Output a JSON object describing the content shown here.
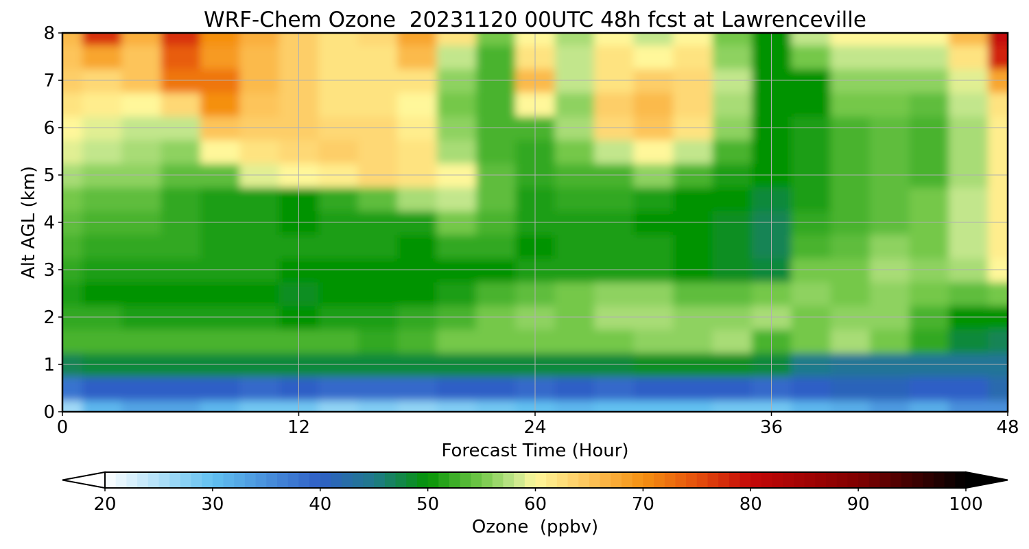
{
  "chart_data": {
    "type": "heatmap",
    "title": "WRF-Chem Ozone  20231120 00UTC 48h fcst at Lawrenceville",
    "xlabel": "Forecast Time (Hour)",
    "ylabel": "Alt AGL (km)",
    "xlim": [
      0,
      48
    ],
    "ylim": [
      0,
      8
    ],
    "xticks": [
      0,
      12,
      24,
      36,
      48
    ],
    "yticks": [
      0,
      1,
      2,
      3,
      4,
      5,
      6,
      7,
      8
    ],
    "grid": true,
    "colorbar": {
      "label": "Ozone  (ppbv)",
      "range": [
        20,
        100
      ],
      "ticks": [
        20,
        30,
        40,
        50,
        60,
        70,
        80,
        90,
        100
      ],
      "extend": "both",
      "levels_step": 1,
      "colors": [
        {
          "value": 20,
          "color": "#ffffff"
        },
        {
          "value": 30,
          "color": "#62c1f1"
        },
        {
          "value": 40,
          "color": "#2f5fc6"
        },
        {
          "value": 45,
          "color": "#1f7a8a"
        },
        {
          "value": 50,
          "color": "#059305"
        },
        {
          "value": 55,
          "color": "#74c84a"
        },
        {
          "value": 58,
          "color": "#c2e68c"
        },
        {
          "value": 60,
          "color": "#fff79a"
        },
        {
          "value": 65,
          "color": "#fdc45a"
        },
        {
          "value": 70,
          "color": "#f59011"
        },
        {
          "value": 75,
          "color": "#e5500d"
        },
        {
          "value": 80,
          "color": "#c40707"
        },
        {
          "value": 90,
          "color": "#800000"
        },
        {
          "value": 100,
          "color": "#000000"
        }
      ]
    },
    "altitudes_km": [
      0,
      0.5,
      1,
      1.5,
      2,
      2.5,
      3,
      3.5,
      4,
      4.5,
      5,
      5.5,
      6,
      6.5,
      7,
      7.5,
      8
    ],
    "hours": [
      0,
      2,
      4,
      6,
      8,
      10,
      12,
      14,
      16,
      18,
      20,
      22,
      24,
      26,
      28,
      30,
      32,
      34,
      36,
      38,
      40,
      42,
      44,
      46,
      48
    ],
    "ozone_ppbv": [
      [
        26,
        31,
        33,
        33,
        31,
        29,
        29,
        27,
        28,
        27,
        28,
        29,
        30,
        31,
        30,
        30,
        30,
        29,
        29,
        31,
        32,
        34,
        32,
        35,
        35
      ],
      [
        38,
        40,
        40,
        40,
        40,
        39,
        40,
        39,
        39,
        39,
        40,
        40,
        39,
        40,
        39,
        40,
        40,
        40,
        39,
        40,
        41,
        41,
        40,
        40,
        42
      ],
      [
        47,
        48,
        48,
        48,
        48,
        48,
        48,
        48,
        48,
        48,
        48,
        48,
        48,
        48,
        48,
        49,
        49,
        49,
        48,
        45,
        44,
        44,
        44,
        44,
        44
      ],
      [
        53,
        53,
        53,
        53,
        53,
        53,
        53,
        53,
        52,
        53,
        55,
        55,
        55,
        55,
        55,
        56,
        56,
        57,
        53,
        55,
        57,
        55,
        52,
        48,
        47
      ],
      [
        52,
        52,
        51,
        51,
        51,
        51,
        50,
        51,
        51,
        52,
        53,
        55,
        56,
        55,
        57,
        57,
        56,
        56,
        57,
        55,
        56,
        56,
        53,
        50,
        50
      ],
      [
        51,
        50,
        50,
        50,
        50,
        50,
        49,
        50,
        50,
        50,
        51,
        53,
        54,
        55,
        56,
        56,
        54,
        54,
        55,
        56,
        55,
        56,
        55,
        54,
        55
      ],
      [
        52,
        51,
        51,
        51,
        51,
        51,
        50,
        50,
        50,
        50,
        50,
        50,
        51,
        51,
        51,
        51,
        50,
        49,
        48,
        55,
        55,
        57,
        56,
        57,
        60
      ],
      [
        53,
        52,
        52,
        52,
        51,
        51,
        51,
        51,
        51,
        50,
        52,
        52,
        50,
        51,
        51,
        51,
        50,
        49,
        47,
        53,
        54,
        56,
        55,
        58,
        61
      ],
      [
        54,
        53,
        53,
        52,
        51,
        51,
        50,
        51,
        51,
        51,
        55,
        53,
        51,
        51,
        51,
        50,
        50,
        49,
        47,
        52,
        53,
        54,
        55,
        58,
        61
      ],
      [
        55,
        54,
        54,
        52,
        51,
        51,
        50,
        52,
        54,
        57,
        58,
        54,
        51,
        52,
        52,
        51,
        50,
        50,
        48,
        51,
        53,
        54,
        55,
        58,
        61
      ],
      [
        57,
        56,
        56,
        54,
        54,
        59,
        60,
        61,
        63,
        62,
        60,
        54,
        52,
        53,
        53,
        56,
        53,
        51,
        50,
        51,
        53,
        54,
        53,
        57,
        61
      ],
      [
        59,
        58,
        57,
        56,
        60,
        62,
        63,
        64,
        63,
        62,
        57,
        53,
        52,
        55,
        58,
        60,
        58,
        53,
        50,
        51,
        53,
        54,
        53,
        57,
        61
      ],
      [
        60,
        59,
        58,
        58,
        65,
        64,
        64,
        63,
        63,
        61,
        56,
        53,
        53,
        57,
        63,
        65,
        62,
        56,
        50,
        51,
        53,
        54,
        53,
        57,
        61
      ],
      [
        62,
        61,
        60,
        63,
        70,
        65,
        64,
        62,
        62,
        60,
        55,
        53,
        60,
        56,
        64,
        66,
        63,
        57,
        50,
        50,
        55,
        55,
        54,
        58,
        62
      ],
      [
        64,
        63,
        65,
        72,
        72,
        66,
        64,
        62,
        62,
        62,
        56,
        53,
        66,
        58,
        62,
        64,
        63,
        58,
        50,
        50,
        56,
        56,
        56,
        59,
        68
      ],
      [
        65,
        68,
        65,
        74,
        69,
        66,
        64,
        62,
        62,
        66,
        58,
        53,
        62,
        58,
        62,
        60,
        62,
        56,
        50,
        55,
        58,
        58,
        58,
        62,
        78
      ],
      [
        66,
        77,
        67,
        77,
        70,
        67,
        64,
        62,
        63,
        68,
        62,
        55,
        60,
        57,
        60,
        58,
        60,
        55,
        50,
        58,
        60,
        60,
        60,
        66,
        80
      ]
    ]
  }
}
